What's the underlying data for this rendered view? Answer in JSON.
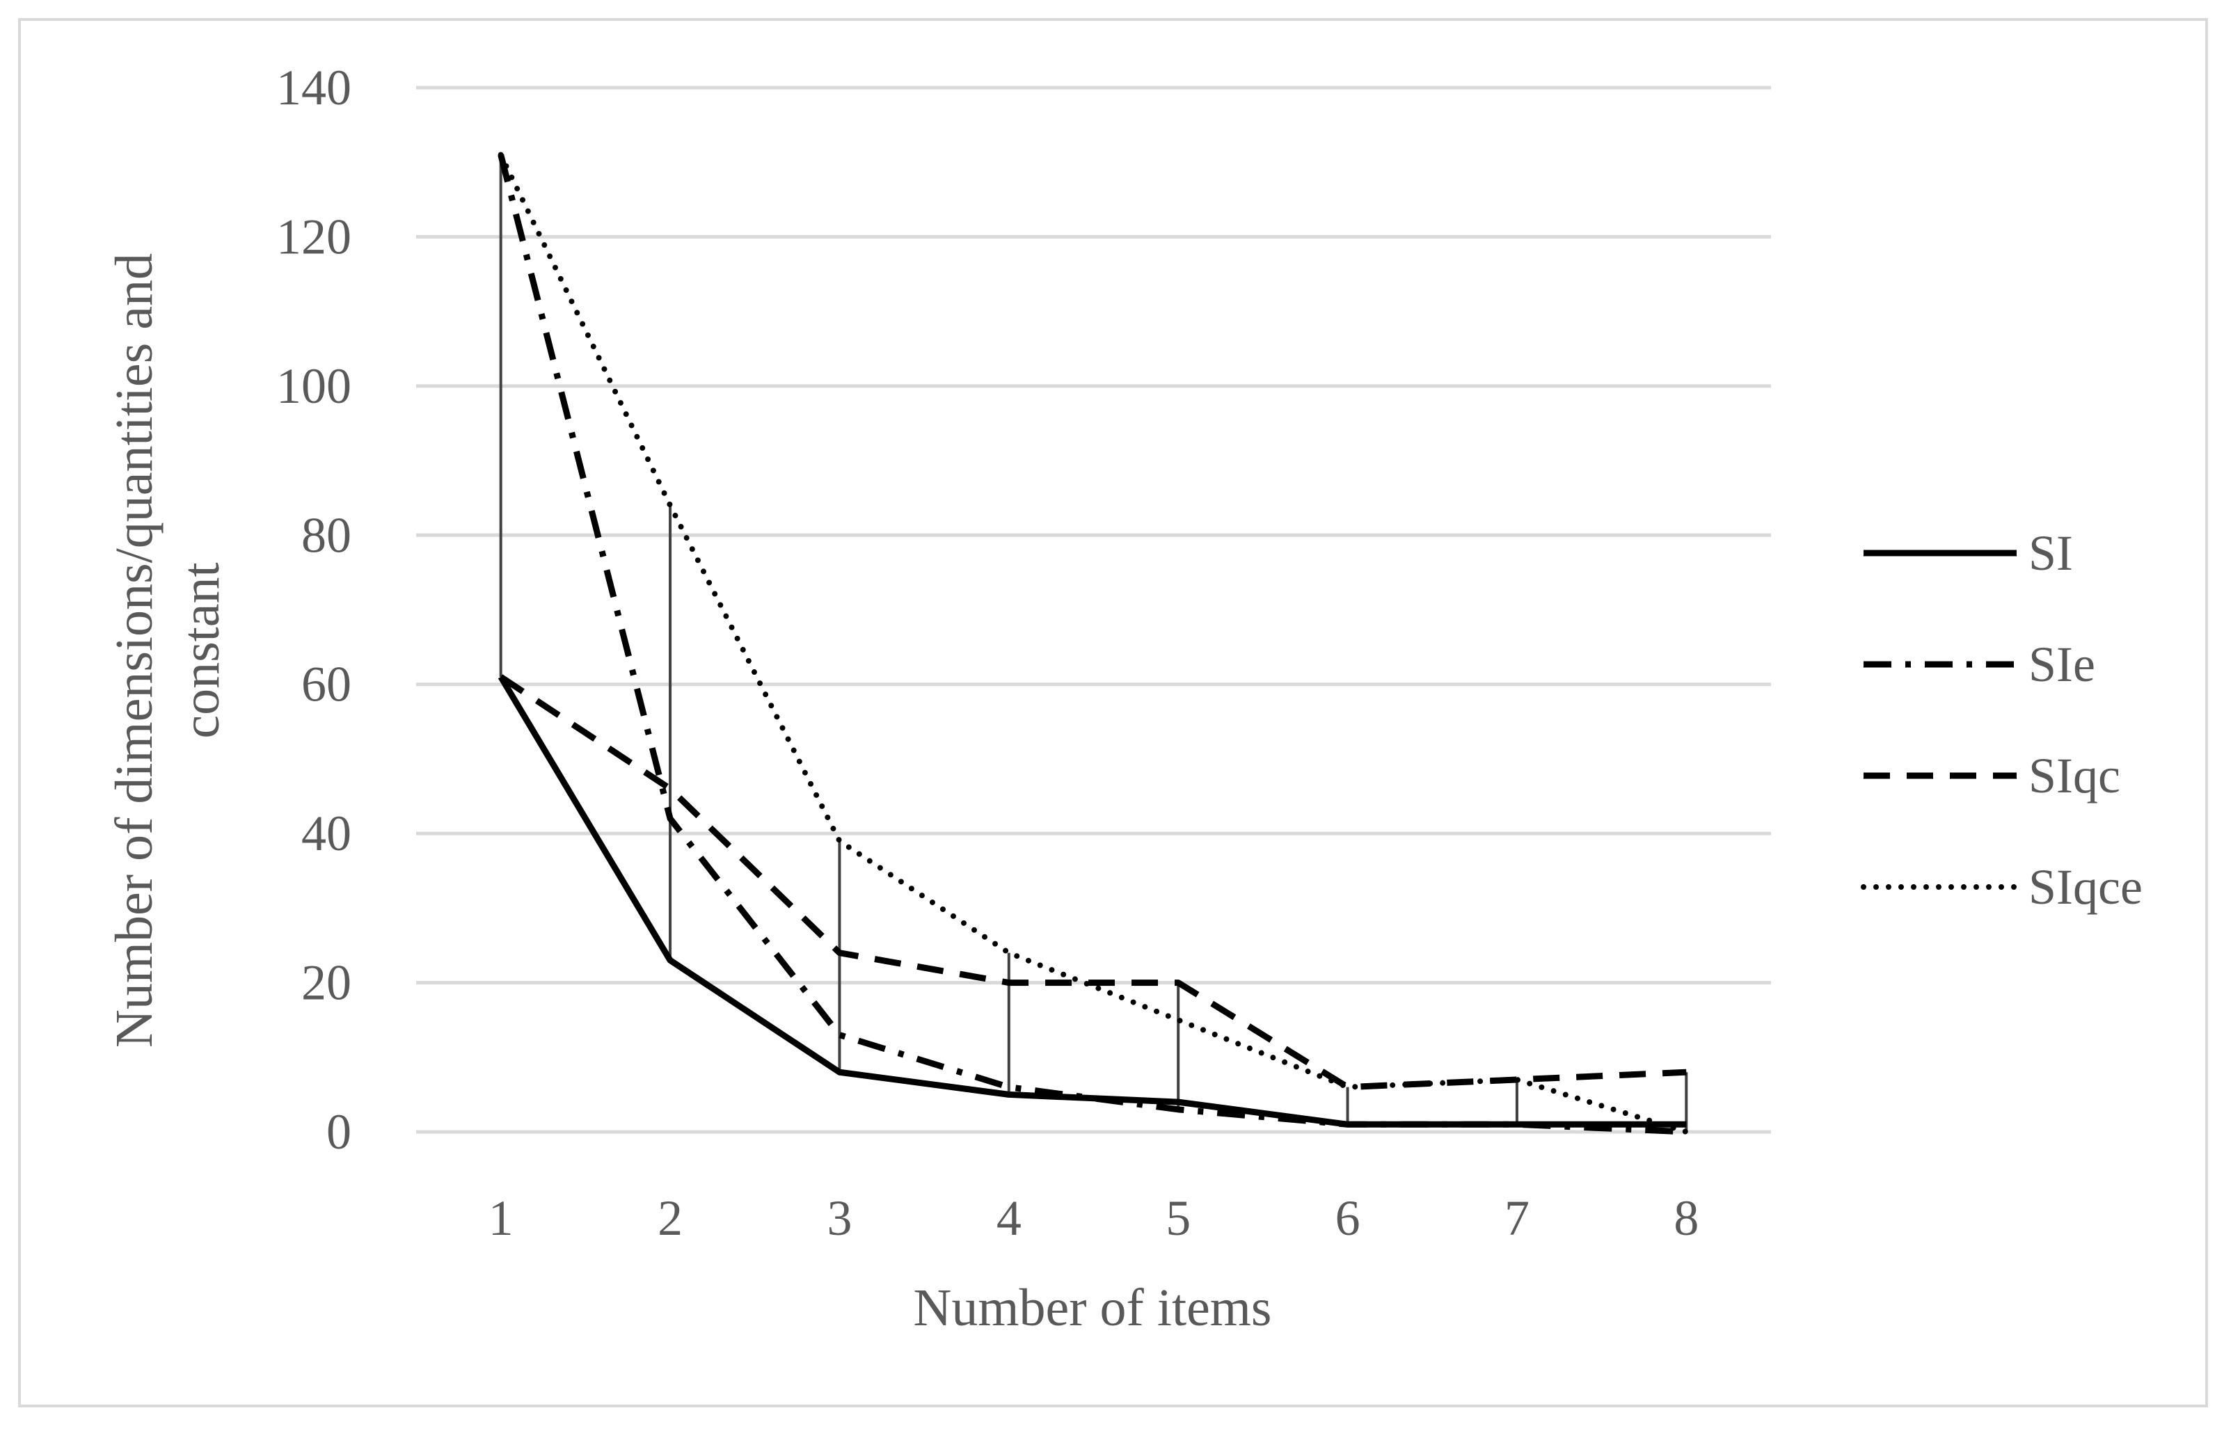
{
  "chart_data": {
    "type": "line",
    "title": "",
    "xlabel": "Number of items",
    "ylabel_line1": "Number of dimensions/quantities and",
    "ylabel_line2": "constant",
    "x": [
      "1",
      "2",
      "3",
      "4",
      "5",
      "6",
      "7",
      "8"
    ],
    "ylim": [
      0,
      140
    ],
    "yticks": [
      "0",
      "20",
      "40",
      "60",
      "80",
      "100",
      "120",
      "140"
    ],
    "grid": true,
    "legend_position": "right",
    "high_low_lines": true,
    "series": [
      {
        "name": "SI",
        "style": "solid",
        "values": [
          61,
          23,
          8,
          5,
          4,
          1,
          1,
          1
        ]
      },
      {
        "name": "SIe",
        "style": "dash-dot",
        "values": [
          131,
          42,
          13,
          6,
          3,
          1,
          1,
          0
        ]
      },
      {
        "name": "SIqc",
        "style": "dash",
        "values": [
          61,
          46,
          24,
          20,
          20,
          6,
          7,
          8
        ]
      },
      {
        "name": "SIqce",
        "style": "dot",
        "values": [
          131,
          84,
          39,
          24,
          15,
          6,
          7,
          0
        ]
      }
    ],
    "colors": {
      "series": "#000000",
      "grid": "#d9d9d9",
      "drop_lines": "#404040",
      "text": "#595959"
    }
  }
}
